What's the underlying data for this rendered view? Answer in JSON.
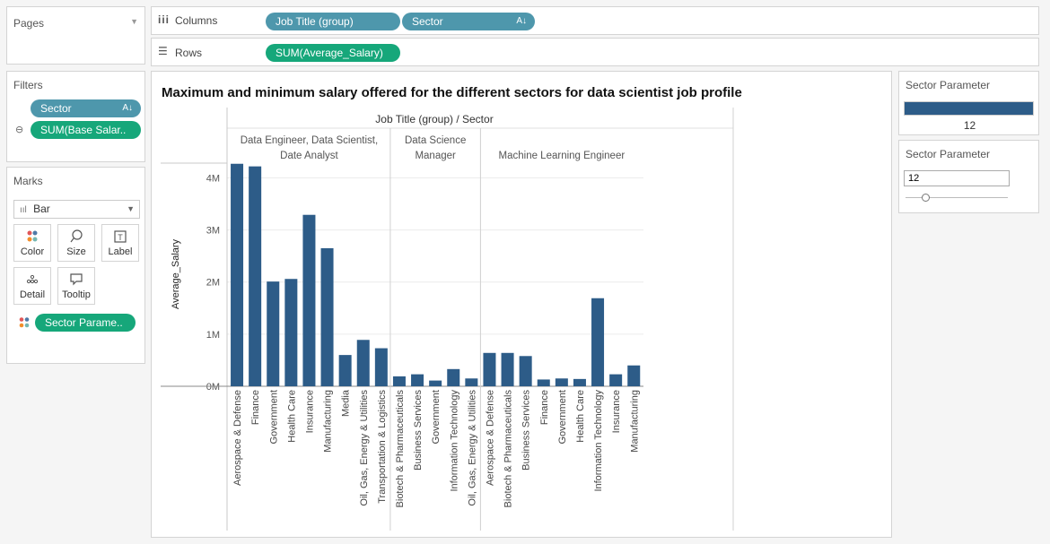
{
  "pages": {
    "title": "Pages"
  },
  "shelves": {
    "columns_label": "Columns",
    "rows_label": "Rows",
    "columns_pills": [
      "Job Title (group)",
      "Sector"
    ],
    "rows_pills": [
      "SUM(Average_Salary)"
    ]
  },
  "filters": {
    "title": "Filters",
    "items": [
      "Sector",
      "SUM(Base Salar.."
    ]
  },
  "marks": {
    "title": "Marks",
    "type": "Bar",
    "buttons": [
      "Color",
      "Size",
      "Label",
      "Detail",
      "Tooltip"
    ],
    "field_pill": "Sector Parame.."
  },
  "sector_param_1": {
    "title": "Sector Parameter",
    "value": "12",
    "fill_fraction": 1.0
  },
  "sector_param_2": {
    "title": "Sector Parameter",
    "value": "12",
    "slider_fraction": 0.2
  },
  "chart_data": {
    "type": "bar",
    "title": "Maximum and minimum salary offered for the different sectors for data scientist job profile",
    "header": "Job Title (group) / Sector",
    "ylabel": "Average_Salary",
    "ylim": [
      0,
      4300000
    ],
    "yticks": [
      {
        "v": 0,
        "label": "0M"
      },
      {
        "v": 1000000,
        "label": "1M"
      },
      {
        "v": 2000000,
        "label": "2M"
      },
      {
        "v": 3000000,
        "label": "3M"
      },
      {
        "v": 4000000,
        "label": "4M"
      }
    ],
    "bar_color": "#2d5c88",
    "groups": [
      {
        "name": "Data Engineer, Data Scientist, Date Analyst",
        "name_lines": [
          "Data Engineer, Data Scientist,",
          "Date Analyst"
        ],
        "categories": [
          "Aerospace & Defense",
          "Finance",
          "Government",
          "Health Care",
          "Insurance",
          "Manufacturing",
          "Media",
          "Oil, Gas, Energy & Utilities",
          "Transportation & Logistics"
        ],
        "values": [
          4270000,
          4220000,
          2010000,
          2060000,
          3290000,
          2650000,
          600000,
          890000,
          730000
        ]
      },
      {
        "name": "Data Science Manager",
        "name_lines": [
          "Data Science",
          "Manager"
        ],
        "categories": [
          "Biotech & Pharmaceuticals",
          "Business Services",
          "Government",
          "Information Technology",
          "Oil, Gas, Energy & Utilities"
        ],
        "values": [
          190000,
          230000,
          110000,
          330000,
          150000
        ]
      },
      {
        "name": "Machine Learning Engineer",
        "name_lines": [
          "Machine Learning Engineer"
        ],
        "categories": [
          "Aerospace & Defense",
          "Biotech & Pharmaceuticals",
          "Business Services",
          "Finance",
          "Government",
          "Health Care",
          "Information Technology",
          "Insurance",
          "Manufacturing"
        ],
        "values": [
          640000,
          640000,
          580000,
          130000,
          150000,
          140000,
          1690000,
          230000,
          400000
        ]
      }
    ]
  }
}
